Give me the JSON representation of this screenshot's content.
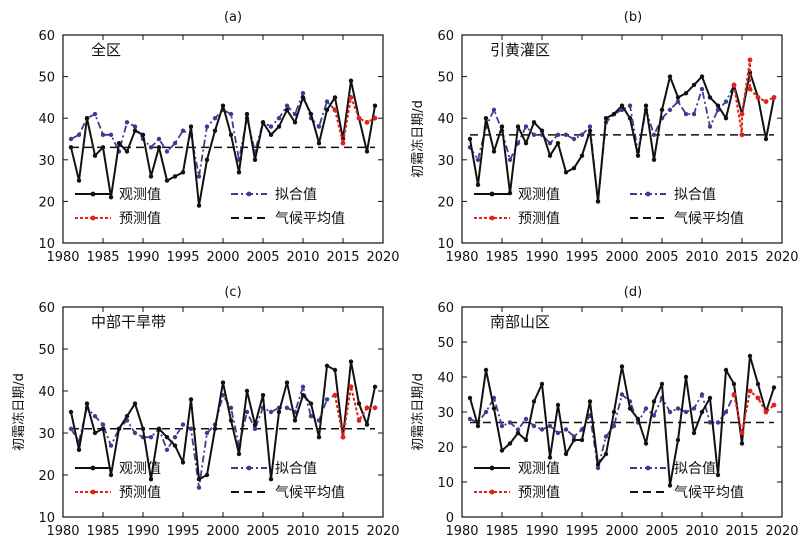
{
  "legend_labels": {
    "observed": "观测值",
    "fitted": "拟合值",
    "predicted": "预测值",
    "climate": "气候平均值"
  },
  "colors": {
    "observed": "#111111",
    "fitted": "#3d3d8f",
    "predicted": "#e0231b",
    "climate": "#111111"
  },
  "chart_data": [
    {
      "type": "line",
      "panel": "(a)",
      "region": "全区",
      "ylabel": "",
      "xlim": [
        1980,
        2020
      ],
      "ylim": [
        10,
        60
      ],
      "xticks": [
        1980,
        1985,
        1990,
        1995,
        2000,
        2005,
        2010,
        2015,
        2020
      ],
      "yticks": [
        10,
        20,
        30,
        40,
        50,
        60
      ],
      "climate_mean": 33,
      "series": [
        {
          "key": "observed",
          "x": [
            1981,
            1982,
            1983,
            1984,
            1985,
            1986,
            1987,
            1988,
            1989,
            1990,
            1991,
            1992,
            1993,
            1994,
            1995,
            1996,
            1997,
            1998,
            1999,
            2000,
            2001,
            2002,
            2003,
            2004,
            2005,
            2006,
            2007,
            2008,
            2009,
            2010,
            2011,
            2012,
            2013,
            2014,
            2015,
            2016,
            2017,
            2018,
            2019
          ],
          "y": [
            33,
            25,
            40,
            31,
            33,
            21,
            34,
            32,
            37,
            36,
            26,
            33,
            25,
            26,
            27,
            38,
            19,
            30,
            37,
            43,
            36,
            27,
            41,
            30,
            39,
            36,
            38,
            42,
            39,
            45,
            41,
            34,
            42,
            45,
            35,
            49,
            40,
            32,
            43
          ]
        },
        {
          "key": "fitted",
          "x": [
            1981,
            1982,
            1983,
            1984,
            1985,
            1986,
            1987,
            1988,
            1989,
            1990,
            1991,
            1992,
            1993,
            1994,
            1995,
            1996,
            1997,
            1998,
            1999,
            2000,
            2001,
            2002,
            2003,
            2004,
            2005,
            2006,
            2007,
            2008,
            2009,
            2010,
            2011,
            2012,
            2013,
            2014
          ],
          "y": [
            35,
            36,
            40,
            41,
            36,
            36,
            32,
            39,
            38,
            35,
            33,
            35,
            32,
            34,
            37,
            36,
            26,
            38,
            40,
            42,
            41,
            30,
            40,
            32,
            39,
            38,
            40,
            43,
            41,
            46,
            40,
            38,
            44,
            42
          ]
        },
        {
          "key": "predicted",
          "x": [
            2014,
            2015,
            2016,
            2017,
            2018,
            2019
          ],
          "y": [
            42,
            34,
            45,
            40,
            39,
            40
          ]
        }
      ]
    },
    {
      "type": "line",
      "panel": "(b)",
      "region": "引黄灌区",
      "ylabel": "初霜冻日期/d",
      "xlim": [
        1980,
        2020
      ],
      "ylim": [
        10,
        60
      ],
      "xticks": [
        1980,
        1985,
        1990,
        1995,
        2000,
        2005,
        2010,
        2015,
        2020
      ],
      "yticks": [
        10,
        20,
        30,
        40,
        50,
        60
      ],
      "climate_mean": 36,
      "series": [
        {
          "key": "observed",
          "x": [
            1981,
            1982,
            1983,
            1984,
            1985,
            1986,
            1987,
            1988,
            1989,
            1990,
            1991,
            1992,
            1993,
            1994,
            1995,
            1996,
            1997,
            1998,
            1999,
            2000,
            2001,
            2002,
            2003,
            2004,
            2005,
            2006,
            2007,
            2008,
            2009,
            2010,
            2011,
            2012,
            2013,
            2014,
            2015,
            2016,
            2017,
            2018,
            2019
          ],
          "y": [
            35,
            24,
            40,
            32,
            38,
            22,
            38,
            34,
            39,
            37,
            31,
            34,
            27,
            28,
            31,
            37,
            20,
            40,
            41,
            43,
            40,
            31,
            43,
            30,
            42,
            50,
            45,
            46,
            48,
            50,
            45,
            43,
            40,
            48,
            41,
            51,
            45,
            35,
            45
          ]
        },
        {
          "key": "fitted",
          "x": [
            1981,
            1982,
            1983,
            1984,
            1985,
            1986,
            1987,
            1988,
            1989,
            1990,
            1991,
            1992,
            1993,
            1994,
            1995,
            1996,
            1997,
            1998,
            1999,
            2000,
            2001,
            2002,
            2003,
            2004,
            2005,
            2006,
            2007,
            2008,
            2009,
            2010,
            2011,
            2012,
            2013,
            2014
          ],
          "y": [
            33,
            30,
            38,
            42,
            37,
            30,
            34,
            38,
            36,
            36,
            34,
            36,
            36,
            35,
            36,
            38,
            20,
            39,
            41,
            42,
            43,
            32,
            42,
            36,
            40,
            42,
            44,
            41,
            41,
            47,
            38,
            42,
            44,
            48
          ]
        },
        {
          "key": "predicted",
          "x": [
            2014,
            2015,
            2015,
            2016,
            2016,
            2017,
            2018,
            2019
          ],
          "y": [
            48,
            36,
            41,
            54,
            47,
            45,
            44,
            45
          ]
        }
      ]
    },
    {
      "type": "line",
      "panel": "(c)",
      "region": "中部干旱带",
      "ylabel": "初霜冻日期/d",
      "xlim": [
        1980,
        2020
      ],
      "ylim": [
        10,
        60
      ],
      "xticks": [
        1980,
        1985,
        1990,
        1995,
        2000,
        2005,
        2010,
        2015,
        2020
      ],
      "yticks": [
        10,
        20,
        30,
        40,
        50,
        60
      ],
      "climate_mean": 31,
      "series": [
        {
          "key": "observed",
          "x": [
            1981,
            1982,
            1983,
            1984,
            1985,
            1986,
            1987,
            1988,
            1989,
            1990,
            1991,
            1992,
            1993,
            1994,
            1995,
            1996,
            1997,
            1998,
            1999,
            2000,
            2001,
            2002,
            2003,
            2004,
            2005,
            2006,
            2007,
            2008,
            2009,
            2010,
            2011,
            2012,
            2013,
            2014,
            2015,
            2016,
            2017,
            2018,
            2019
          ],
          "y": [
            35,
            26,
            37,
            30,
            31,
            20,
            31,
            34,
            37,
            31,
            19,
            31,
            29,
            27,
            23,
            38,
            19,
            20,
            31,
            42,
            33,
            25,
            40,
            32,
            39,
            19,
            35,
            42,
            33,
            39,
            37,
            29,
            46,
            45,
            29,
            47,
            37,
            32,
            41
          ]
        },
        {
          "key": "fitted",
          "x": [
            1981,
            1982,
            1983,
            1984,
            1985,
            1986,
            1987,
            1988,
            1989,
            1990,
            1991,
            1992,
            1993,
            1994,
            1995,
            1996,
            1997,
            1998,
            1999,
            2000,
            2001,
            2002,
            2003,
            2004,
            2005,
            2006,
            2007,
            2008,
            2009,
            2010,
            2011,
            2012,
            2013,
            2014
          ],
          "y": [
            31,
            28,
            36,
            34,
            32,
            27,
            31,
            33,
            30,
            29,
            29,
            31,
            26,
            29,
            32,
            31,
            17,
            30,
            32,
            39,
            36,
            27,
            35,
            31,
            36,
            35,
            36,
            36,
            35,
            41,
            34,
            33,
            38,
            39
          ]
        },
        {
          "key": "predicted",
          "x": [
            2014,
            2015,
            2016,
            2017,
            2018,
            2019
          ],
          "y": [
            39,
            29,
            41,
            33,
            36,
            36
          ]
        }
      ]
    },
    {
      "type": "line",
      "panel": "(d)",
      "region": "南部山区",
      "ylabel": "初霜冻日期/d",
      "xlim": [
        1980,
        2020
      ],
      "ylim": [
        0,
        60
      ],
      "xticks": [
        1980,
        1985,
        1990,
        1995,
        2000,
        2005,
        2010,
        2015,
        2020
      ],
      "yticks": [
        0,
        10,
        20,
        30,
        40,
        50,
        60
      ],
      "climate_mean": 27,
      "series": [
        {
          "key": "observed",
          "x": [
            1981,
            1982,
            1983,
            1984,
            1985,
            1986,
            1987,
            1988,
            1989,
            1990,
            1991,
            1992,
            1993,
            1994,
            1995,
            1996,
            1997,
            1998,
            1999,
            2000,
            2001,
            2002,
            2003,
            2004,
            2005,
            2006,
            2007,
            2008,
            2009,
            2010,
            2011,
            2012,
            2013,
            2014,
            2015,
            2016,
            2017,
            2018,
            2019
          ],
          "y": [
            34,
            26,
            42,
            31,
            19,
            21,
            24,
            22,
            33,
            38,
            17,
            32,
            18,
            22,
            22,
            33,
            15,
            18,
            30,
            43,
            31,
            28,
            21,
            33,
            38,
            9,
            22,
            40,
            24,
            30,
            34,
            12,
            42,
            38,
            21,
            46,
            38,
            30,
            37
          ]
        },
        {
          "key": "fitted",
          "x": [
            1981,
            1982,
            1983,
            1984,
            1985,
            1986,
            1987,
            1988,
            1989,
            1990,
            1991,
            1992,
            1993,
            1994,
            1995,
            1996,
            1997,
            1998,
            1999,
            2000,
            2001,
            2002,
            2003,
            2004,
            2005,
            2006,
            2007,
            2008,
            2009,
            2010,
            2011,
            2012,
            2013,
            2014
          ],
          "y": [
            28,
            27,
            30,
            34,
            26,
            27,
            25,
            28,
            26,
            25,
            26,
            24,
            25,
            23,
            25,
            29,
            14,
            23,
            26,
            35,
            33,
            27,
            31,
            29,
            34,
            30,
            31,
            30,
            31,
            35,
            27,
            27,
            30,
            35
          ]
        },
        {
          "key": "predicted",
          "x": [
            2014,
            2015,
            2016,
            2017,
            2018,
            2019
          ],
          "y": [
            35,
            24,
            36,
            34,
            30,
            32
          ]
        }
      ]
    }
  ]
}
